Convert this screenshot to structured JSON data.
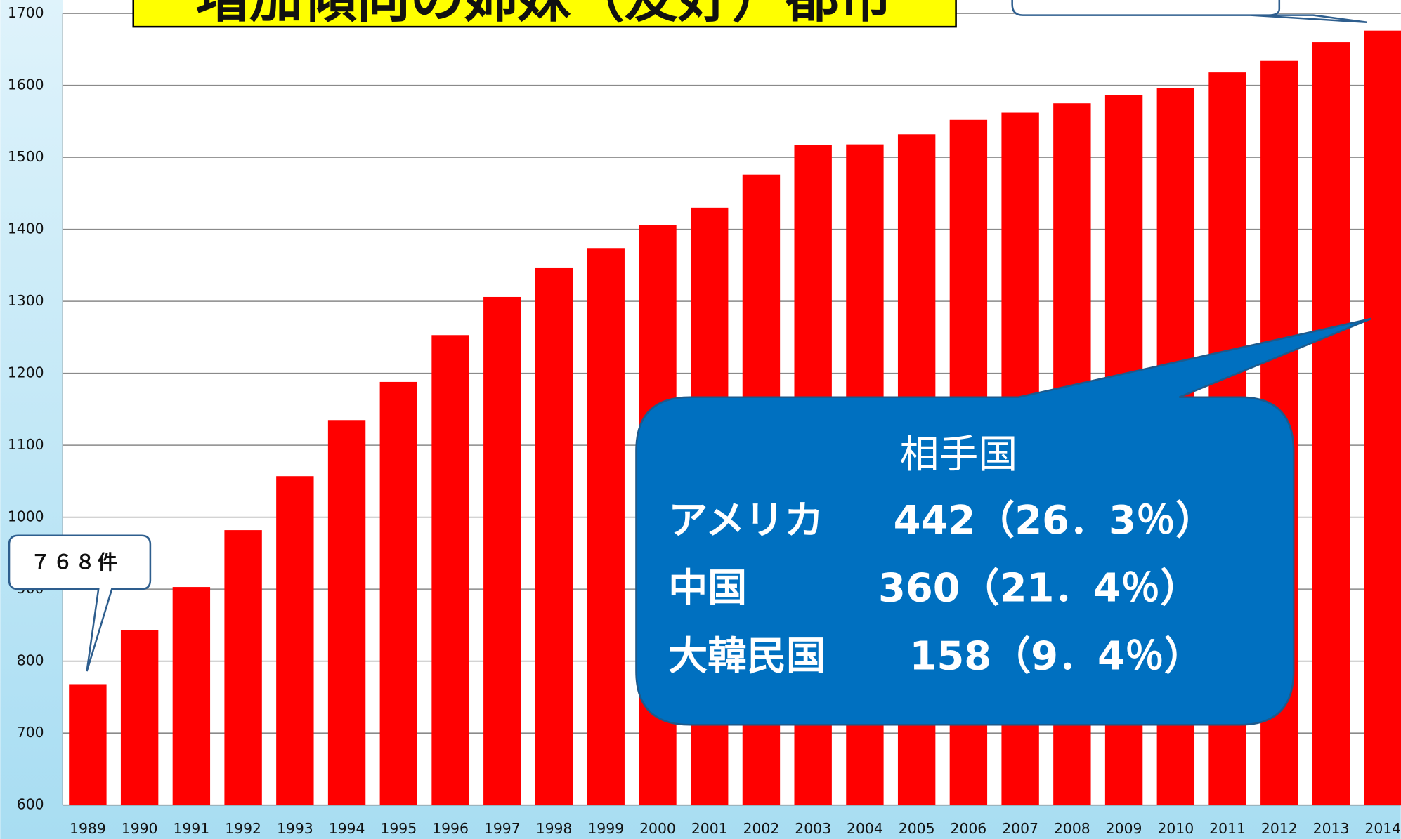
{
  "chart_data": {
    "type": "bar",
    "title": "増加傾向の姉妹（友好）都市",
    "categories": [
      "1989",
      "1990",
      "1991",
      "1992",
      "1993",
      "1994",
      "1995",
      "1996",
      "1997",
      "1998",
      "1999",
      "2000",
      "2001",
      "2002",
      "2003",
      "2004",
      "2005",
      "2006",
      "2007",
      "2008",
      "2009",
      "2010",
      "2011",
      "2012",
      "2013",
      "2014"
    ],
    "values": [
      768,
      843,
      903,
      982,
      1057,
      1135,
      1188,
      1253,
      1306,
      1346,
      1374,
      1406,
      1430,
      1476,
      1517,
      1518,
      1532,
      1552,
      1562,
      1575,
      1586,
      1596,
      1618,
      1634,
      1660,
      1676
    ],
    "color": "#ff0000",
    "ylim": [
      600,
      1700
    ],
    "yticks": [
      600,
      700,
      800,
      900,
      1000,
      1100,
      1200,
      1300,
      1400,
      1500,
      1600,
      1700
    ],
    "grid": true,
    "annotations": {
      "first_label": "７６８件",
      "callout": {
        "heading": "相手国",
        "rows": [
          [
            "アメリカ",
            "442（26．3％）"
          ],
          [
            "中国",
            "360（21．4％）"
          ],
          [
            "大韓民国",
            "158（9．4％）"
          ]
        ]
      }
    }
  }
}
